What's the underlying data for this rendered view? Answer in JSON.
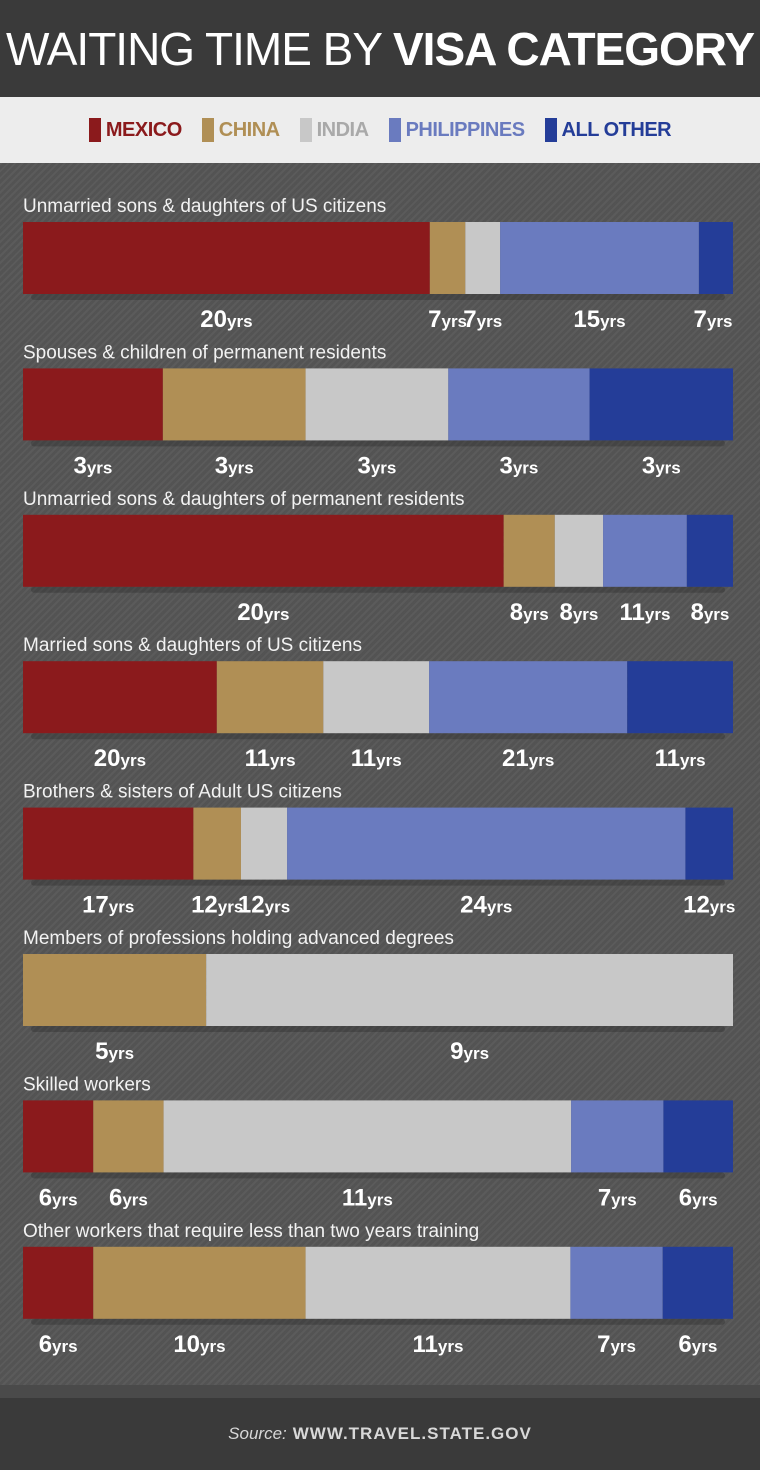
{
  "header": {
    "title_light": "WAITING TIME BY ",
    "title_bold": "VISA CATEGORY"
  },
  "legend": [
    {
      "label": "MEXICO",
      "color": "#8b1a1c"
    },
    {
      "label": "CHINA",
      "color": "#b08f55"
    },
    {
      "label": "INDIA",
      "color": "#c8c8c8"
    },
    {
      "label": "PHILIPPINES",
      "color": "#6a7bbf"
    },
    {
      "label": "ALL OTHER",
      "color": "#243d98"
    }
  ],
  "footer": {
    "source_label": "Source:",
    "source_url": "WWW.TRAVEL.STATE.GOV"
  },
  "chart_data": {
    "type": "bar",
    "orientation": "horizontal",
    "stacked": true,
    "value_unit": "yrs",
    "series": [
      {
        "name": "MEXICO",
        "color": "#8b1a1c"
      },
      {
        "name": "CHINA",
        "color": "#b08f55"
      },
      {
        "name": "INDIA",
        "color": "#c8c8c8"
      },
      {
        "name": "PHILIPPINES",
        "color": "#6a7bbf"
      },
      {
        "name": "ALL OTHER",
        "color": "#243d98"
      }
    ],
    "categories": [
      {
        "label": "Unmarried sons & daughters of US citizens",
        "values": [
          20,
          7,
          7,
          15,
          7
        ],
        "segment_widths": [
          0.573,
          0.05,
          0.049,
          0.28,
          0.048
        ]
      },
      {
        "label": "Spouses & children of permanent residents",
        "values": [
          3,
          3,
          3,
          3,
          3
        ],
        "segment_widths": [
          0.197,
          0.201,
          0.201,
          0.199,
          0.202
        ]
      },
      {
        "label": "Unmarried sons & daughters of permanent residents",
        "values": [
          20,
          8,
          8,
          11,
          8
        ],
        "segment_widths": [
          0.677,
          0.072,
          0.068,
          0.118,
          0.065
        ]
      },
      {
        "label": "Married sons & daughters of US citizens",
        "values": [
          20,
          11,
          11,
          21,
          11
        ],
        "segment_widths": [
          0.273,
          0.15,
          0.149,
          0.279,
          0.149
        ]
      },
      {
        "label": "Brothers & sisters of Adult US citizens",
        "values": [
          17,
          12,
          12,
          24,
          12
        ],
        "segment_widths": [
          0.24,
          0.067,
          0.065,
          0.561,
          0.067
        ]
      },
      {
        "label": "Members of professions holding advanced degrees",
        "values": [
          null,
          5,
          9,
          null,
          null
        ],
        "segment_widths": [
          0,
          0.258,
          0.742,
          0,
          0
        ]
      },
      {
        "label": "Skilled workers",
        "values": [
          6,
          6,
          11,
          7,
          6
        ],
        "segment_widths": [
          0.099,
          0.099,
          0.574,
          0.13,
          0.098
        ]
      },
      {
        "label": "Other workers that require less than two years training",
        "values": [
          6,
          10,
          11,
          7,
          6
        ],
        "segment_widths": [
          0.099,
          0.299,
          0.373,
          0.13,
          0.099
        ]
      }
    ]
  }
}
